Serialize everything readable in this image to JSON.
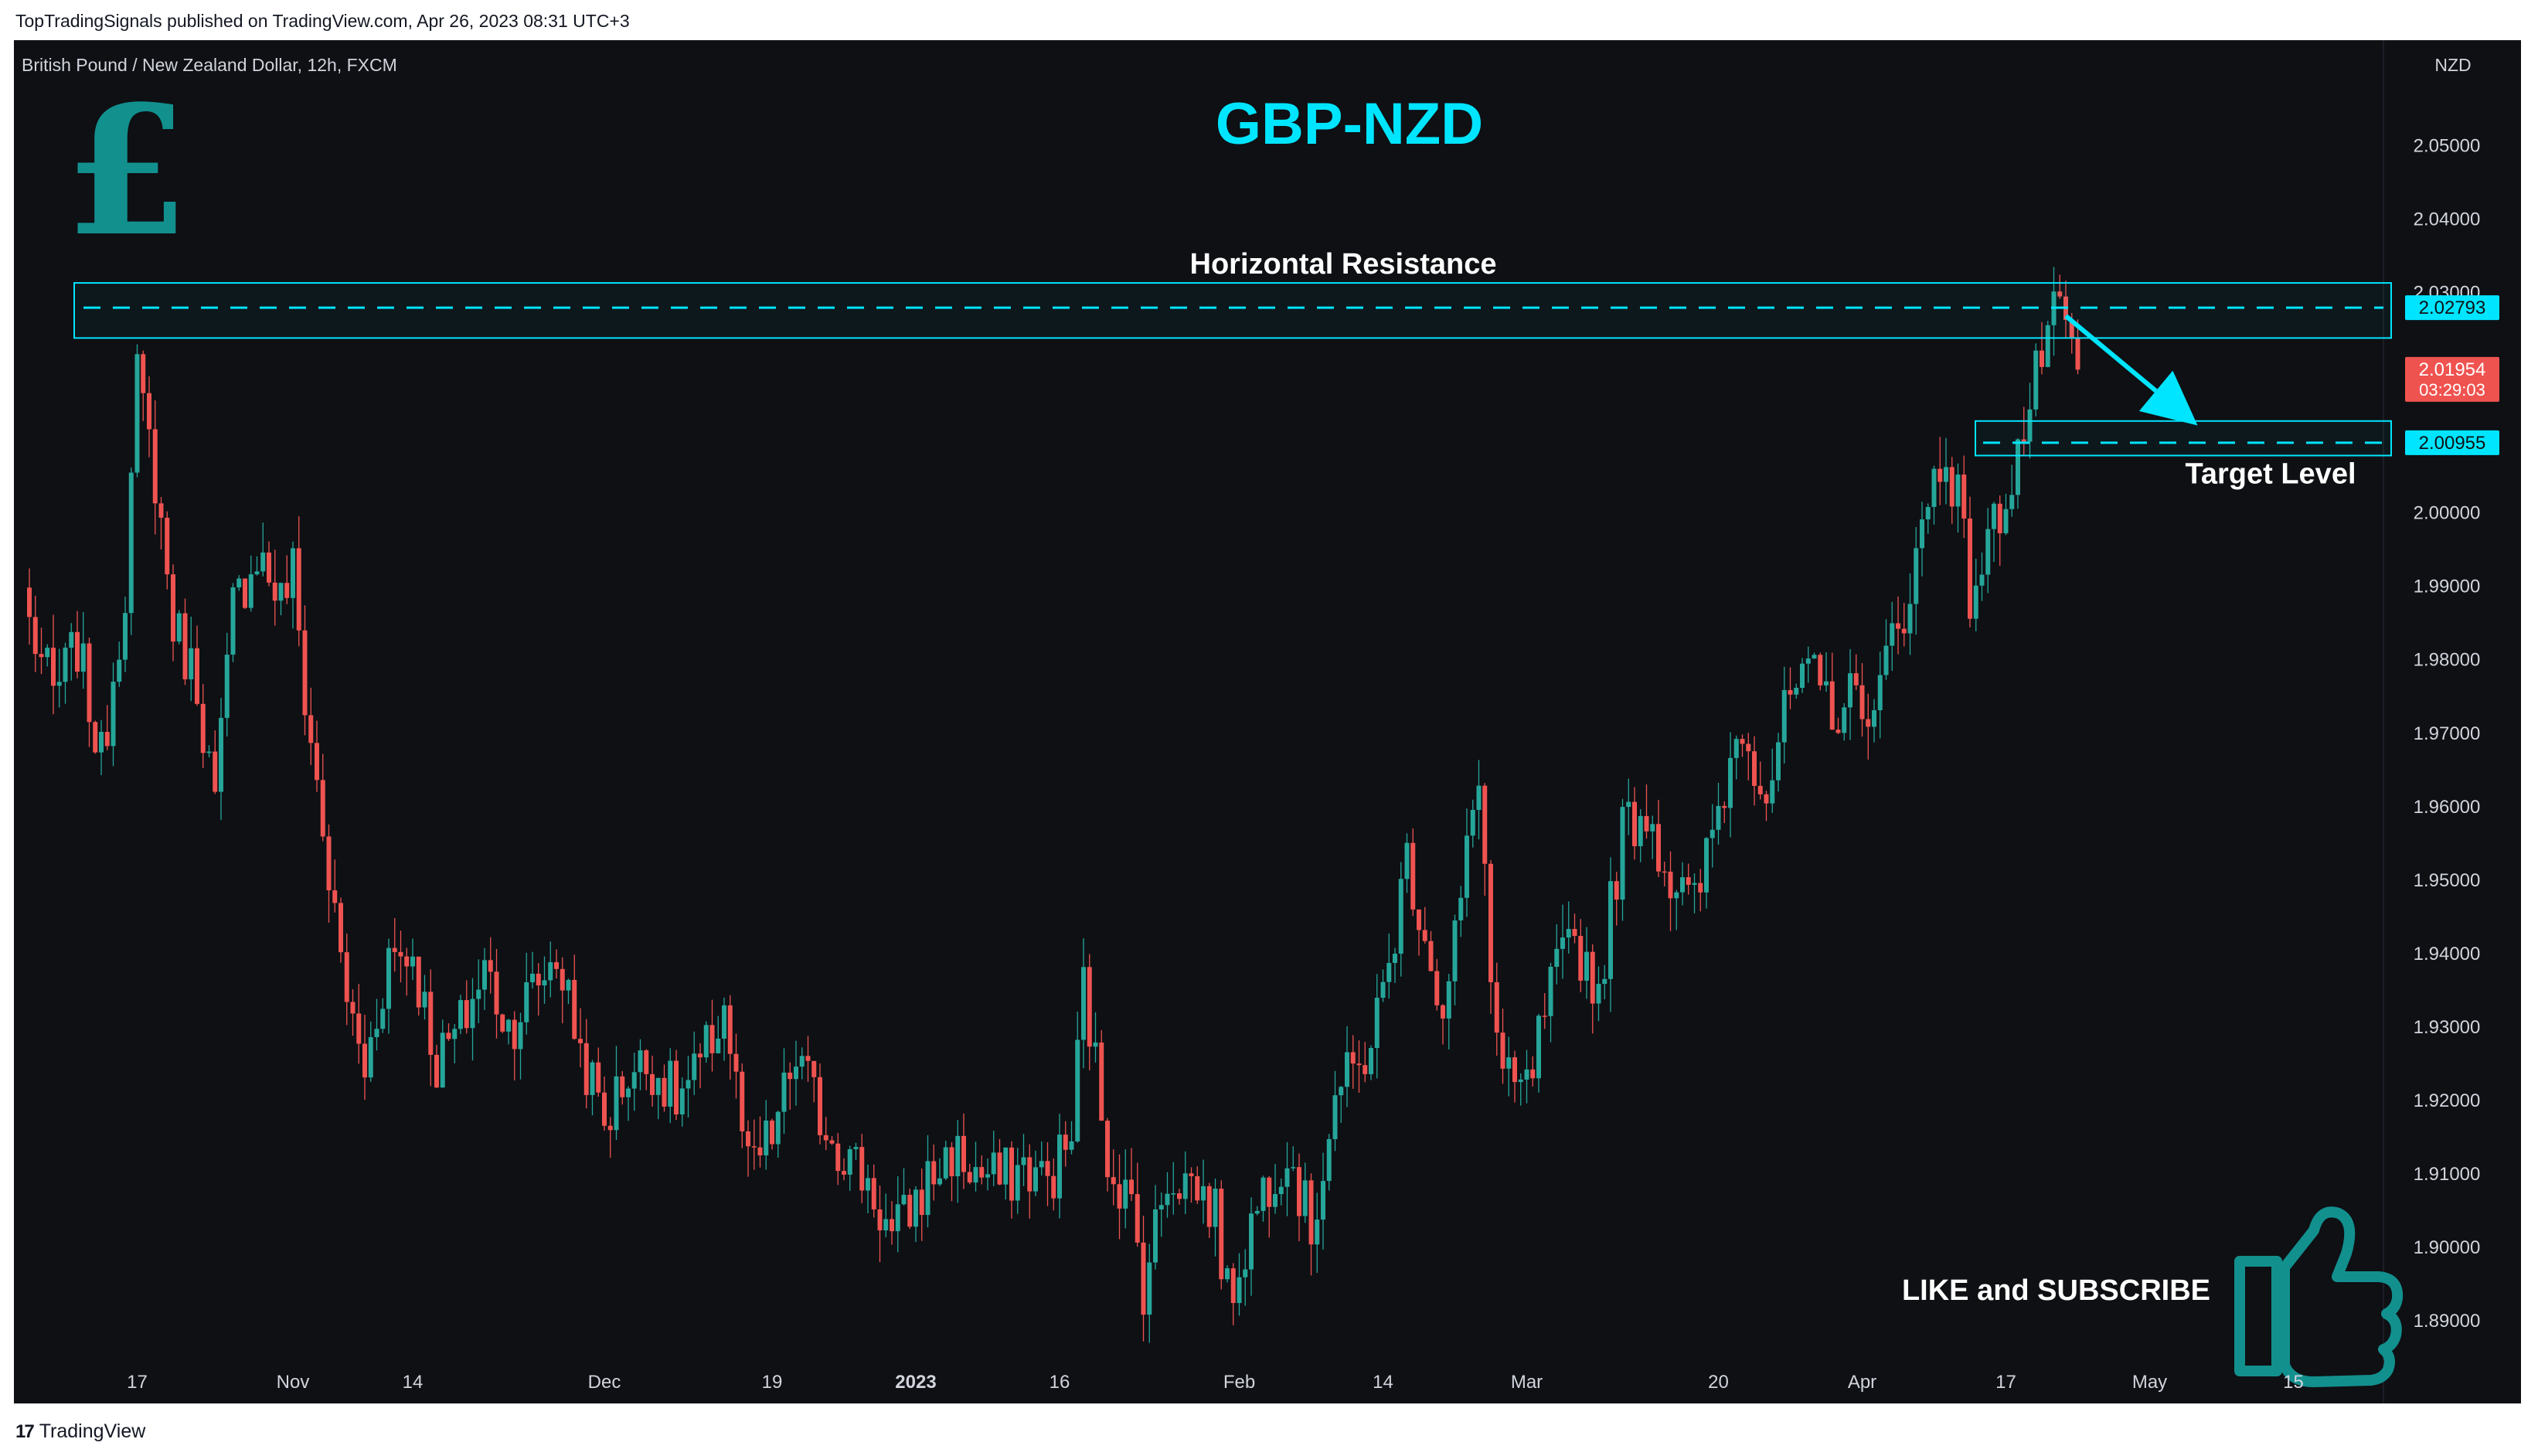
{
  "attribution": "TopTradingSignals published on TradingView.com, Apr 26, 2023 08:31 UTC+3",
  "footer": {
    "logo": "17",
    "brand": "TradingView"
  },
  "colors": {
    "background": "#0e1014",
    "up": "#26a69a",
    "down": "#ef5350",
    "accent": "#00e5ff",
    "icon": "#12908e"
  },
  "chart_data": {
    "type": "candlestick",
    "instrument_label": "British Pound / New Zealand Dollar, 12h, FXCM",
    "title": "GBP-NZD",
    "currency": "NZD",
    "y_ticks": [
      "2.05000",
      "2.04000",
      "2.03000",
      "2.02000",
      "2.01000",
      "2.00000",
      "1.99000",
      "1.98000",
      "1.97000",
      "1.96000",
      "1.95000",
      "1.94000",
      "1.93000",
      "1.92000",
      "1.91000",
      "1.90000",
      "1.89000"
    ],
    "ylim": [
      1.8855,
      2.0635
    ],
    "x_ticks": [
      {
        "label": "17",
        "idx": 18,
        "bold": false
      },
      {
        "label": "Nov",
        "idx": 44,
        "bold": false
      },
      {
        "label": "14",
        "idx": 64,
        "bold": false
      },
      {
        "label": "Dec",
        "idx": 96,
        "bold": false
      },
      {
        "label": "19",
        "idx": 124,
        "bold": false
      },
      {
        "label": "2023",
        "idx": 148,
        "bold": true
      },
      {
        "label": "16",
        "idx": 172,
        "bold": false
      },
      {
        "label": "Feb",
        "idx": 202,
        "bold": false
      },
      {
        "label": "14",
        "idx": 226,
        "bold": false
      },
      {
        "label": "Mar",
        "idx": 250,
        "bold": false
      },
      {
        "label": "20",
        "idx": 282,
        "bold": false
      },
      {
        "label": "Apr",
        "idx": 306,
        "bold": false
      },
      {
        "label": "17",
        "idx": 330,
        "bold": false
      },
      {
        "label": "May",
        "idx": 354,
        "bold": false
      },
      {
        "label": "15",
        "idx": 378,
        "bold": false
      }
    ],
    "candle_count": 343,
    "close_series": [
      [
        0,
        1.985
      ],
      [
        4,
        1.975
      ],
      [
        8,
        1.982
      ],
      [
        12,
        1.966
      ],
      [
        16,
        1.99
      ],
      [
        18,
        2.018
      ],
      [
        21,
        2.005
      ],
      [
        24,
        1.985
      ],
      [
        28,
        1.977
      ],
      [
        31,
        1.96
      ],
      [
        34,
        1.987
      ],
      [
        38,
        1.995
      ],
      [
        42,
        1.988
      ],
      [
        44,
        1.992
      ],
      [
        46,
        1.975
      ],
      [
        48,
        1.963
      ],
      [
        51,
        1.944
      ],
      [
        54,
        1.93
      ],
      [
        56,
        1.924
      ],
      [
        60,
        1.94
      ],
      [
        64,
        1.94
      ],
      [
        68,
        1.925
      ],
      [
        72,
        1.93
      ],
      [
        76,
        1.938
      ],
      [
        80,
        1.93
      ],
      [
        84,
        1.935
      ],
      [
        88,
        1.94
      ],
      [
        92,
        1.927
      ],
      [
        96,
        1.917
      ],
      [
        100,
        1.924
      ],
      [
        104,
        1.925
      ],
      [
        108,
        1.92
      ],
      [
        112,
        1.924
      ],
      [
        116,
        1.933
      ],
      [
        120,
        1.91
      ],
      [
        124,
        1.915
      ],
      [
        128,
        1.926
      ],
      [
        132,
        1.918
      ],
      [
        136,
        1.913
      ],
      [
        140,
        1.909
      ],
      [
        144,
        1.901
      ],
      [
        147,
        1.905
      ],
      [
        150,
        1.909
      ],
      [
        154,
        1.913
      ],
      [
        158,
        1.91
      ],
      [
        162,
        1.909
      ],
      [
        166,
        1.911
      ],
      [
        170,
        1.909
      ],
      [
        174,
        1.915
      ],
      [
        176,
        1.936
      ],
      [
        180,
        1.913
      ],
      [
        184,
        1.905
      ],
      [
        186,
        1.895
      ],
      [
        190,
        1.91
      ],
      [
        194,
        1.909
      ],
      [
        198,
        1.905
      ],
      [
        200,
        1.893
      ],
      [
        202,
        1.898
      ],
      [
        206,
        1.908
      ],
      [
        210,
        1.914
      ],
      [
        214,
        1.902
      ],
      [
        218,
        1.921
      ],
      [
        222,
        1.924
      ],
      [
        226,
        1.934
      ],
      [
        230,
        1.953
      ],
      [
        234,
        1.94
      ],
      [
        236,
        1.93
      ],
      [
        240,
        1.953
      ],
      [
        242,
        1.966
      ],
      [
        244,
        1.936
      ],
      [
        246,
        1.922
      ],
      [
        250,
        1.921
      ],
      [
        254,
        1.935
      ],
      [
        258,
        1.942
      ],
      [
        262,
        1.935
      ],
      [
        266,
        1.957
      ],
      [
        270,
        1.96
      ],
      [
        274,
        1.95
      ],
      [
        278,
        1.946
      ],
      [
        282,
        1.96
      ],
      [
        286,
        1.972
      ],
      [
        290,
        1.962
      ],
      [
        294,
        1.975
      ],
      [
        298,
        1.977
      ],
      [
        302,
        1.973
      ],
      [
        306,
        1.976
      ],
      [
        308,
        1.971
      ],
      [
        310,
        1.98
      ],
      [
        314,
        1.99
      ],
      [
        318,
        2.005
      ],
      [
        320,
        2.008
      ],
      [
        322,
        2.002
      ],
      [
        324,
        1.989
      ],
      [
        326,
        1.993
      ],
      [
        330,
        2.003
      ],
      [
        334,
        2.014
      ],
      [
        336,
        2.022
      ],
      [
        338,
        2.026
      ],
      [
        340,
        2.025
      ],
      [
        342,
        2.0195
      ]
    ],
    "last_price": "2.01954",
    "countdown": "03:29:03",
    "annotations": {
      "resistance": {
        "label": "Horizontal Resistance",
        "price": "2.02793",
        "upper": 2.0313,
        "lower": 2.0238
      },
      "target": {
        "label": "Target Level",
        "price": "2.00955",
        "upper": 2.0125,
        "lower": 2.0078
      },
      "arrow": {
        "from_idx": 340,
        "from_price": 2.0268,
        "to_idx": 362,
        "to_price": 2.0119
      },
      "cta": "LIKE and SUBSCRIBE",
      "currency_symbol": "£"
    }
  }
}
